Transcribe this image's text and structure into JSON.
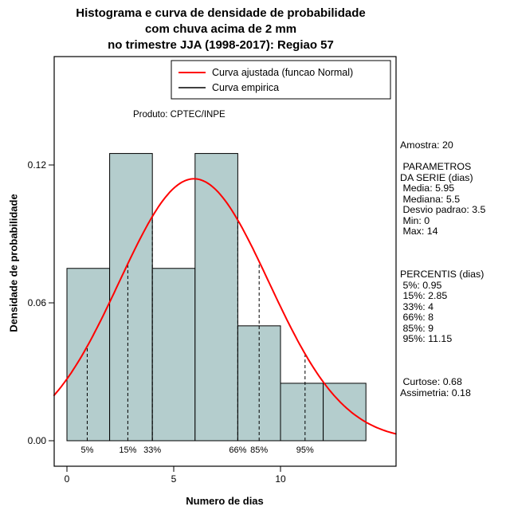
{
  "chart_data": {
    "type": "bar",
    "title_lines": [
      "Histograma e curva de densidade de probabilidade",
      "com chuva acima de 2 mm",
      "no trimestre JJA (1998-2017): Regiao 57"
    ],
    "xlabel": "Numero de dias",
    "ylabel": "Densidade de probabilidade",
    "product_note": "Produto: CPTEC/INPE",
    "x_ticks": [
      0,
      5,
      10
    ],
    "y_ticks": [
      {
        "value": 0.0,
        "label": "0.00"
      },
      {
        "value": 0.06,
        "label": "0.06"
      },
      {
        "value": 0.12,
        "label": "0.12"
      }
    ],
    "xlim": [
      -0.56,
      15.4
    ],
    "ylim": [
      0,
      0.167
    ],
    "histogram": {
      "bin_start": 0,
      "bin_width": 2,
      "bin_edges": [
        0,
        2,
        4,
        6,
        8,
        10,
        12,
        14
      ],
      "densities": [
        0.075,
        0.125,
        0.075,
        0.125,
        0.05,
        0.025,
        0.025
      ],
      "counts": [
        3,
        5,
        3,
        5,
        2,
        1,
        1
      ]
    },
    "normal_curve": {
      "mean": 5.95,
      "sd": 3.5,
      "color": "#ff0000",
      "label": "Curva ajustada (funcao Normal)"
    },
    "empirical_curve": {
      "color": "#000000",
      "label": "Curva empirica"
    },
    "legend": {
      "entries": [
        {
          "label": "Curva ajustada (funcao Normal)",
          "color": "#ff0000",
          "stroke_width": 2
        },
        {
          "label": "Curva empirica",
          "color": "#000000",
          "stroke_width": 1.5
        }
      ]
    },
    "percentiles": [
      {
        "label": "5%",
        "value": 0.95
      },
      {
        "label": "15%",
        "value": 2.85
      },
      {
        "label": "33%",
        "value": 4
      },
      {
        "label": "66%",
        "value": 8
      },
      {
        "label": "85%",
        "value": 9
      },
      {
        "label": "95%",
        "value": 11.15
      }
    ],
    "stats": {
      "amostra": 20,
      "media": 5.95,
      "mediana": 5.5,
      "desvio_padrao": 3.5,
      "min": 0,
      "max": 14,
      "curtose": 0.68,
      "assimetria": 0.18
    },
    "stats_lines": [
      "Amostra: 20",
      "",
      " PARAMETROS",
      "DA SERIE (dias)",
      " Media: 5.95",
      " Mediana: 5.5",
      " Desvio padrao: 3.5",
      " Min: 0",
      " Max: 14",
      "",
      "",
      "",
      "PERCENTIS (dias)",
      " 5%: 0.95",
      " 15%: 2.85",
      " 33%: 4",
      " 66%: 8",
      " 85%: 9",
      " 95%: 11.15",
      "",
      "",
      "",
      " Curtose: 0.68",
      "Assimetria: 0.18"
    ],
    "colors": {
      "bar_fill": "#b4cdcd",
      "bar_stroke": "#000000",
      "box_stroke": "#000000",
      "dashed_line": "#000000",
      "background": "#ffffff"
    }
  }
}
